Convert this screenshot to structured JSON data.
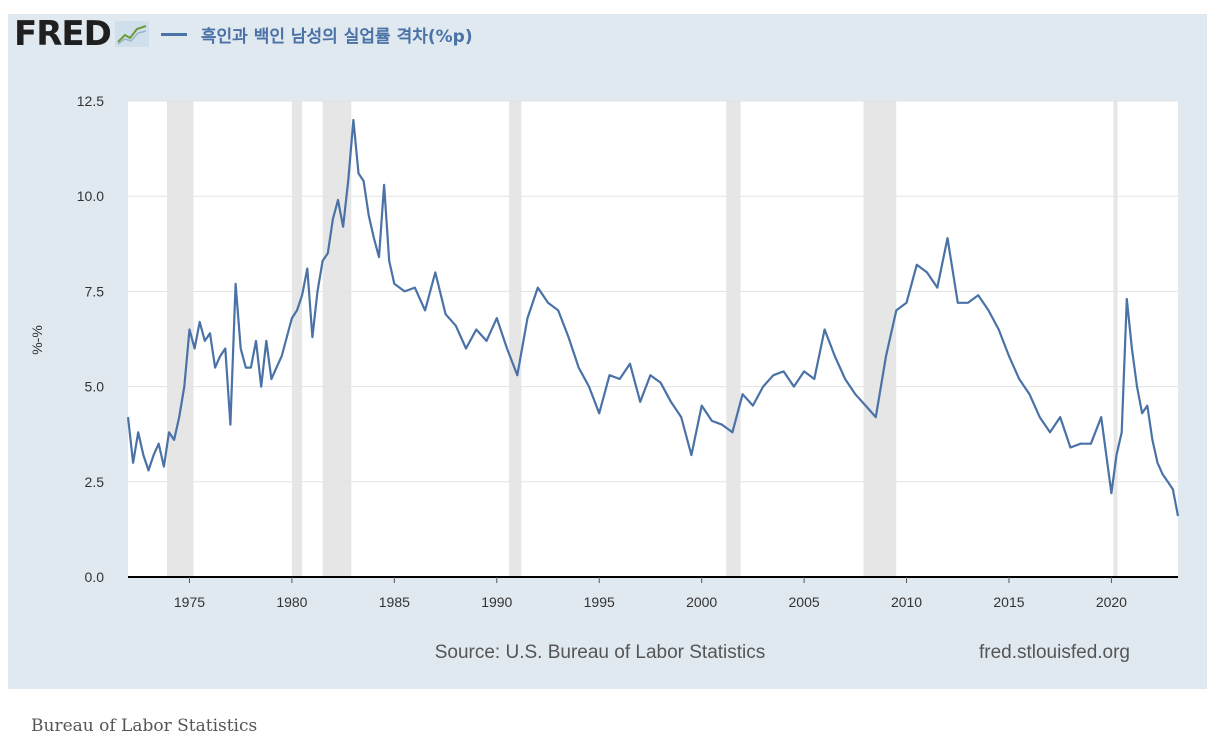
{
  "header": {
    "logo_text": "FRED",
    "logo_icon": "line-chart-icon"
  },
  "footer": {
    "source": "Source: U.S. Bureau of Labor Statistics",
    "site": "fred.stlouisfed.org"
  },
  "caption": "Bureau of Labor Statistics",
  "colors": {
    "panel_bg": "#e1e9f0",
    "series": "#4a72a6",
    "recession": "#e6e6e6",
    "title": "#4a72a6"
  },
  "chart_data": {
    "type": "line",
    "title": "흑인과 백인 남성의 실업률 격차(%p)",
    "xlabel": "",
    "ylabel": "%-%",
    "xlim": [
      1972.0,
      2023.25
    ],
    "ylim": [
      0,
      12.5
    ],
    "y_ticks": [
      0.0,
      2.5,
      5.0,
      7.5,
      10.0,
      12.5
    ],
    "y_tick_labels": [
      "0.0",
      "2.5",
      "5.0",
      "7.5",
      "10.0",
      "12.5"
    ],
    "x_ticks": [
      1975,
      1980,
      1985,
      1990,
      1995,
      2000,
      2005,
      2010,
      2015,
      2020
    ],
    "x_tick_labels": [
      "1975",
      "1980",
      "1985",
      "1990",
      "1995",
      "2000",
      "2005",
      "2010",
      "2015",
      "2020"
    ],
    "grid": "horizontal",
    "recessions": [
      [
        1973.9,
        1975.2
      ],
      [
        1980.0,
        1980.5
      ],
      [
        1981.5,
        1982.9
      ],
      [
        1990.6,
        1991.2
      ],
      [
        2001.2,
        2001.9
      ],
      [
        2007.9,
        2009.5
      ],
      [
        2020.1,
        2020.3
      ]
    ],
    "series": [
      {
        "x": [
          1972.0,
          1972.25,
          1972.5,
          1972.75,
          1973.0,
          1973.25,
          1973.5,
          1973.75,
          1974.0,
          1974.25,
          1974.5,
          1974.75,
          1975.0,
          1975.25,
          1975.5,
          1975.75,
          1976.0,
          1976.25,
          1976.5,
          1976.75,
          1977.0,
          1977.25,
          1977.5,
          1977.75,
          1978.0,
          1978.25,
          1978.5,
          1978.75,
          1979.0,
          1979.25,
          1979.5,
          1979.75,
          1980.0,
          1980.25,
          1980.5,
          1980.75,
          1981.0,
          1981.25,
          1981.5,
          1981.75,
          1982.0,
          1982.25,
          1982.5,
          1982.75,
          1983.0,
          1983.25,
          1983.5,
          1983.75,
          1984.0,
          1984.25,
          1984.5,
          1984.75,
          1985.0,
          1985.5,
          1986.0,
          1986.5,
          1987.0,
          1987.5,
          1988.0,
          1988.5,
          1989.0,
          1989.5,
          1990.0,
          1990.5,
          1991.0,
          1991.5,
          1992.0,
          1992.5,
          1993.0,
          1993.5,
          1994.0,
          1994.5,
          1995.0,
          1995.5,
          1996.0,
          1996.5,
          1997.0,
          1997.5,
          1998.0,
          1998.5,
          1999.0,
          1999.5,
          2000.0,
          2000.5,
          2001.0,
          2001.5,
          2002.0,
          2002.5,
          2003.0,
          2003.5,
          2004.0,
          2004.5,
          2005.0,
          2005.5,
          2006.0,
          2006.5,
          2007.0,
          2007.5,
          2008.0,
          2008.5,
          2009.0,
          2009.5,
          2010.0,
          2010.5,
          2011.0,
          2011.5,
          2012.0,
          2012.5,
          2013.0,
          2013.5,
          2014.0,
          2014.5,
          2015.0,
          2015.5,
          2016.0,
          2016.5,
          2017.0,
          2017.5,
          2018.0,
          2018.5,
          2019.0,
          2019.5,
          2020.0,
          2020.25,
          2020.5,
          2020.75,
          2021.0,
          2021.25,
          2021.5,
          2021.75,
          2022.0,
          2022.25,
          2022.5,
          2022.75,
          2023.0,
          2023.25
        ],
        "y": [
          4.2,
          3.0,
          3.8,
          3.2,
          2.8,
          3.2,
          3.5,
          2.9,
          3.8,
          3.6,
          4.2,
          5.0,
          6.5,
          6.0,
          6.7,
          6.2,
          6.4,
          5.5,
          5.8,
          6.0,
          4.0,
          7.7,
          6.0,
          5.5,
          5.5,
          6.2,
          5.0,
          6.2,
          5.2,
          5.5,
          5.8,
          6.3,
          6.8,
          7.0,
          7.4,
          8.1,
          6.3,
          7.5,
          8.3,
          8.5,
          9.4,
          9.9,
          9.2,
          10.4,
          12.0,
          10.6,
          10.4,
          9.5,
          8.9,
          8.4,
          10.3,
          8.3,
          7.7,
          7.5,
          7.6,
          7.0,
          8.0,
          6.9,
          6.6,
          6.0,
          6.5,
          6.2,
          6.8,
          6.0,
          5.3,
          6.8,
          7.6,
          7.2,
          7.0,
          6.3,
          5.5,
          5.0,
          4.3,
          5.3,
          5.2,
          5.6,
          4.6,
          5.3,
          5.1,
          4.6,
          4.2,
          3.2,
          4.5,
          4.1,
          4.0,
          3.8,
          4.8,
          4.5,
          5.0,
          5.3,
          5.4,
          5.0,
          5.4,
          5.2,
          6.5,
          5.8,
          5.2,
          4.8,
          4.5,
          4.2,
          5.8,
          7.0,
          7.2,
          8.2,
          8.0,
          7.6,
          8.9,
          7.2,
          7.2,
          7.4,
          7.0,
          6.5,
          5.8,
          5.2,
          4.8,
          4.2,
          3.8,
          4.2,
          3.4,
          3.5,
          3.5,
          4.2,
          2.2,
          3.2,
          3.8,
          7.3,
          6.0,
          5.0,
          4.3,
          4.5,
          3.6,
          3.0,
          2.7,
          2.5,
          2.3,
          1.6
        ]
      }
    ]
  }
}
